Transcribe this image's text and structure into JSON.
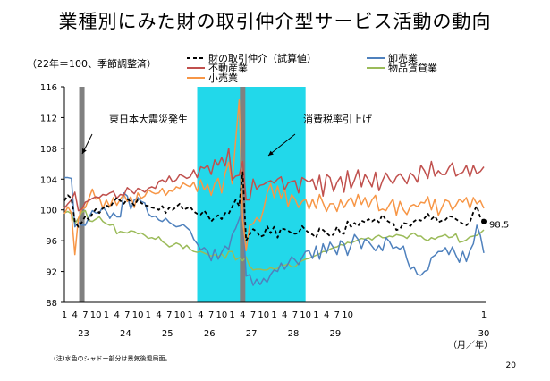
{
  "page": {
    "title": "業種別にみた財の取引仲介型サービス活動の動向",
    "unit_note": "（22年＝100、季節調整済）",
    "footnote": "(注)水色のシャドー部分は景気後退局面。",
    "page_number": "20"
  },
  "chart_data": {
    "type": "line",
    "title": "業種別にみた財の取引仲介型サービス活動の動向",
    "ylabel": "（22年＝100、季節調整済）",
    "xlabel": "（月／年）",
    "ylim": [
      88,
      116
    ],
    "yticks": [
      "88",
      "92",
      "96",
      "100",
      "104",
      "108",
      "112",
      "116"
    ],
    "month_ticks": [
      "1",
      "4",
      "7",
      "10"
    ],
    "year_labels": [
      "23",
      "24",
      "25",
      "26",
      "27",
      "28",
      "29",
      "30"
    ],
    "last_year_month": "1",
    "start": "1988-01",
    "grid": false,
    "legend_position": "top-right",
    "shaded_regions": [
      {
        "type": "recession",
        "color": "#22d8ea",
        "from": "1991-03",
        "to": "1993-10"
      }
    ],
    "event_lines": [
      {
        "date": "1988-06",
        "label": "東日本大震災発生"
      },
      {
        "date": "1992-04",
        "label": "消費税率引上げ"
      }
    ],
    "end_label": "98.5",
    "series": [
      {
        "name": "財の取引仲介（試算値）",
        "color": "#000000",
        "dash": true,
        "values": [
          101.2,
          101.9,
          101.5,
          98.5,
          97.8,
          98.4,
          99.2,
          98.7,
          99.5,
          100.1,
          99.6,
          100.2,
          100.6,
          100.3,
          101.0,
          101.6,
          101.2,
          100.8,
          101.4,
          101.1,
          100.6,
          101.3,
          100.9,
          100.6,
          100.5,
          100.3,
          100.2,
          100.0,
          100.5,
          99.6,
          100.3,
          100.0,
          100.4,
          100.8,
          100.0,
          100.2,
          100.4,
          99.8,
          99.5,
          99.4,
          99.9,
          99.3,
          98.5,
          99.0,
          99.3,
          98.8,
          99.6,
          99.5,
          100.4,
          101.3,
          100.5,
          104.9,
          96.0,
          96.8,
          97.5,
          97.2,
          96.5,
          96.7,
          97.9,
          97.0,
          97.8,
          96.4,
          97.6,
          97.5,
          97.3,
          97.0,
          96.9,
          97.0,
          97.9,
          97.4,
          97.0,
          96.8,
          96.4,
          97.6,
          97.4,
          97.0,
          96.6,
          96.8,
          97.8,
          97.0,
          96.9,
          98.5,
          97.8,
          98.3,
          97.9,
          98.6,
          98.4,
          98.8,
          98.5,
          98.8,
          98.4,
          99.4,
          98.7,
          98.4,
          98.3,
          97.4,
          97.5,
          98.3,
          98.2,
          97.9,
          98.5,
          98.8,
          98.6,
          98.9,
          99.5,
          98.8,
          99.2,
          98.4,
          98.6,
          98.7,
          99.2,
          99.1,
          98.8,
          98.5,
          98.2,
          98.0,
          98.4,
          99.7,
          100.5,
          99.0,
          98.5
        ]
      },
      {
        "name": "不動産業",
        "color": "#c0504d",
        "dash": false,
        "values": [
          100.2,
          100.8,
          101.3,
          102.3,
          99.9,
          100.1,
          101.0,
          101.2,
          101.5,
          101.7,
          101.6,
          102.0,
          101.9,
          102.2,
          102.4,
          101.5,
          102.0,
          101.9,
          102.9,
          102.5,
          102.1,
          102.8,
          102.6,
          102.3,
          102.8,
          103.0,
          102.8,
          103.7,
          103.9,
          103.6,
          104.4,
          103.6,
          103.9,
          104.6,
          104.4,
          104.1,
          104.3,
          105.2,
          104.2,
          105.6,
          105.4,
          105.8,
          104.6,
          106.5,
          105.8,
          106.8,
          105.7,
          108.0,
          103.9,
          104.4,
          104.5,
          106.3,
          101.3,
          101.3,
          104.0,
          102.7,
          103.2,
          103.3,
          103.6,
          103.8,
          103.5,
          104.0,
          104.3,
          102.6,
          103.5,
          103.7,
          103.8,
          102.2,
          104.2,
          103.9,
          103.6,
          104.0,
          102.6,
          104.5,
          101.8,
          104.6,
          104.2,
          102.4,
          103.6,
          104.3,
          102.3,
          105.1,
          102.8,
          103.9,
          105.2,
          103.0,
          104.6,
          103.9,
          103.0,
          104.9,
          102.5,
          103.8,
          104.8,
          104.0,
          103.4,
          104.3,
          104.7,
          104.1,
          103.4,
          104.8,
          104.4,
          103.6,
          105.8,
          105.1,
          104.1,
          106.3,
          104.4,
          105.1,
          104.6,
          104.6,
          105.5,
          106.1,
          104.4,
          104.7,
          104.9,
          105.8,
          104.3,
          105.8,
          104.7,
          105.0,
          105.6
        ]
      },
      {
        "name": "小売業",
        "color": "#f79646",
        "dash": false,
        "values": [
          99.5,
          100.4,
          99.6,
          94.2,
          98.9,
          100.1,
          100.3,
          101.5,
          102.7,
          101.4,
          101.6,
          100.2,
          101.3,
          100.4,
          101.6,
          100.6,
          101.4,
          102.0,
          101.1,
          101.7,
          100.3,
          102.2,
          101.5,
          101.8,
          102.6,
          102.3,
          102.1,
          102.2,
          102.8,
          101.9,
          102.5,
          102.4,
          103.0,
          102.8,
          103.5,
          103.2,
          103.0,
          103.6,
          102.4,
          103.9,
          102.6,
          103.3,
          101.9,
          103.4,
          104.1,
          102.2,
          104.8,
          106.2,
          103.4,
          109.0,
          114.3,
          98.8,
          94.7,
          98.0,
          98.2,
          99.0,
          98.5,
          100.1,
          102.2,
          103.4,
          101.6,
          103.1,
          101.5,
          102.8,
          100.4,
          102.0,
          101.4,
          100.3,
          101.1,
          101.4,
          100.1,
          101.4,
          100.2,
          102.0,
          100.9,
          99.8,
          100.8,
          100.8,
          99.8,
          101.3,
          100.3,
          101.1,
          101.6,
          100.5,
          102.0,
          100.7,
          101.6,
          100.3,
          101.3,
          101.9,
          99.9,
          100.1,
          99.9,
          100.7,
          101.4,
          99.3,
          101.1,
          100.0,
          99.4,
          100.5,
          100.7,
          100.4,
          101.0,
          100.9,
          101.7,
          100.0,
          101.4,
          99.3,
          100.3,
          101.3,
          101.1,
          100.0,
          100.6,
          101.4,
          101.0,
          101.6,
          100.2,
          101.6,
          100.8,
          101.2,
          100.2
        ]
      },
      {
        "name": "卸売業",
        "color": "#4f81bd",
        "dash": false,
        "values": [
          104.2,
          104.2,
          104.1,
          97.8,
          98.4,
          98.0,
          98.0,
          99.0,
          99.9,
          99.6,
          99.6,
          100.4,
          99.8,
          98.9,
          99.6,
          99.1,
          99.1,
          102.2,
          101.8,
          100.1,
          101.3,
          101.6,
          101.1,
          100.9,
          99.5,
          99.1,
          99.2,
          98.7,
          98.5,
          98.9,
          98.4,
          98.1,
          97.8,
          97.9,
          98.1,
          97.7,
          97.3,
          96.2,
          95.6,
          94.8,
          95.1,
          94.6,
          93.4,
          94.9,
          93.6,
          94.5,
          95.3,
          94.9,
          96.8,
          97.6,
          98.8,
          100.1,
          91.4,
          91.6,
          90.2,
          91.0,
          90.3,
          91.1,
          90.6,
          91.6,
          92.2,
          92.0,
          93.1,
          92.3,
          93.0,
          93.9,
          93.5,
          92.9,
          93.8,
          94.6,
          94.7,
          93.7,
          95.3,
          93.6,
          95.6,
          94.4,
          95.8,
          95.1,
          94.2,
          96.0,
          95.6,
          94.1,
          95.4,
          96.8,
          96.2,
          95.0,
          96.2,
          95.9,
          95.3,
          94.7,
          95.4,
          94.7,
          96.4,
          95.9,
          95.0,
          95.2,
          94.9,
          95.3,
          93.6,
          92.3,
          92.6,
          91.6,
          91.5,
          92.0,
          92.2,
          93.8,
          94.1,
          94.6,
          94.6,
          95.1,
          94.2,
          95.2,
          94.1,
          93.2,
          94.6,
          93.3,
          94.7,
          95.6,
          98.0,
          96.7,
          94.4
        ]
      },
      {
        "name": "物品賃貸業",
        "color": "#9bbb59",
        "dash": false,
        "values": [
          99.6,
          99.8,
          99.5,
          98.2,
          98.9,
          99.7,
          99.9,
          98.6,
          98.5,
          98.8,
          99.1,
          98.5,
          98.2,
          98.0,
          98.1,
          96.9,
          97.2,
          97.1,
          97.0,
          97.3,
          97.2,
          96.9,
          97.0,
          96.7,
          96.3,
          96.4,
          96.2,
          96.5,
          95.9,
          95.6,
          95.2,
          95.4,
          95.7,
          95.5,
          95.0,
          95.4,
          94.9,
          94.6,
          94.5,
          94.6,
          94.4,
          94.2,
          94.0,
          94.2,
          93.9,
          94.3,
          93.7,
          94.6,
          94.6,
          93.5,
          93.8,
          93.4,
          93.9,
          92.7,
          92.2,
          92.3,
          92.3,
          92.2,
          92.2,
          92.5,
          92.3,
          92.4,
          92.9,
          92.8,
          93.0,
          92.6,
          92.6,
          93.1,
          93.4,
          93.6,
          93.7,
          93.9,
          94.1,
          94.3,
          94.6,
          94.6,
          94.9,
          95.1,
          95.2,
          95.5,
          95.4,
          95.8,
          95.7,
          95.9,
          96.1,
          96.3,
          96.2,
          96.4,
          96.1,
          96.5,
          96.7,
          96.4,
          96.4,
          96.6,
          96.5,
          96.8,
          96.7,
          96.6,
          96.3,
          96.8,
          97.0,
          96.6,
          96.6,
          96.2,
          96.0,
          96.4,
          96.2,
          96.5,
          96.6,
          96.8,
          96.4,
          96.5,
          96.9,
          95.8,
          95.9,
          96.1,
          96.5,
          96.6,
          96.7,
          97.0,
          97.4
        ]
      }
    ]
  }
}
